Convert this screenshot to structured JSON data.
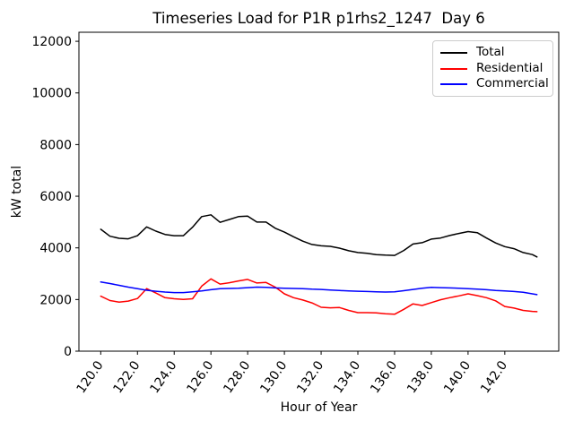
{
  "chart_data": {
    "type": "line",
    "title": "Timeseries Load for P1R p1rhs2_1247  Day 6",
    "xlabel": "Hour of Year",
    "ylabel": "kW total",
    "xlim": [
      118.8125,
      144.9375
    ],
    "ylim": [
      0,
      12350
    ],
    "grid": false,
    "legend_position": "upper right",
    "xticks": [
      120,
      122,
      124,
      126,
      128,
      130,
      132,
      134,
      136,
      138,
      140,
      142
    ],
    "xtick_labels": [
      "120.0",
      "122.0",
      "124.0",
      "126.0",
      "128.0",
      "130.0",
      "132.0",
      "134.0",
      "136.0",
      "138.0",
      "140.0",
      "142.0"
    ],
    "yticks": [
      0,
      2000,
      4000,
      6000,
      8000,
      10000,
      12000
    ],
    "ytick_labels": [
      "0",
      "2000",
      "4000",
      "6000",
      "8000",
      "10000",
      "12000"
    ],
    "x": [
      120.0,
      120.5,
      121.0,
      121.5,
      122.0,
      122.5,
      123.0,
      123.5,
      124.0,
      124.5,
      125.0,
      125.5,
      126.0,
      126.5,
      127.0,
      127.5,
      128.0,
      128.5,
      129.0,
      129.5,
      130.0,
      130.5,
      131.0,
      131.5,
      132.0,
      132.5,
      133.0,
      133.5,
      134.0,
      134.5,
      135.0,
      135.5,
      136.0,
      136.5,
      137.0,
      137.5,
      138.0,
      138.5,
      139.0,
      139.5,
      140.0,
      140.5,
      141.0,
      141.5,
      142.0,
      142.5,
      143.0,
      143.5,
      143.75
    ],
    "series": [
      {
        "name": "Total",
        "color": "#000000",
        "values": [
          4720,
          4450,
          4370,
          4350,
          4470,
          4810,
          4650,
          4520,
          4470,
          4470,
          4800,
          5210,
          5280,
          4990,
          5100,
          5210,
          5230,
          5000,
          5000,
          4760,
          4610,
          4430,
          4260,
          4130,
          4080,
          4060,
          3990,
          3890,
          3820,
          3790,
          3740,
          3720,
          3710,
          3900,
          4150,
          4200,
          4340,
          4380,
          4480,
          4560,
          4630,
          4590,
          4380,
          4190,
          4050,
          3970,
          3820,
          3740,
          3650
        ]
      },
      {
        "name": "Residential",
        "color": "#ff0000",
        "values": [
          2130,
          1960,
          1900,
          1940,
          2040,
          2420,
          2250,
          2070,
          2030,
          2000,
          2030,
          2520,
          2800,
          2600,
          2650,
          2720,
          2780,
          2640,
          2660,
          2480,
          2220,
          2070,
          1980,
          1870,
          1700,
          1680,
          1690,
          1580,
          1490,
          1490,
          1480,
          1450,
          1430,
          1620,
          1830,
          1770,
          1880,
          1990,
          2070,
          2140,
          2220,
          2150,
          2070,
          1950,
          1730,
          1670,
          1580,
          1540,
          1530
        ]
      },
      {
        "name": "Commercial",
        "color": "#0000ff",
        "values": [
          2680,
          2620,
          2550,
          2480,
          2420,
          2360,
          2320,
          2290,
          2270,
          2270,
          2300,
          2330,
          2380,
          2420,
          2430,
          2440,
          2460,
          2480,
          2470,
          2450,
          2440,
          2430,
          2420,
          2400,
          2390,
          2370,
          2350,
          2330,
          2320,
          2310,
          2300,
          2290,
          2300,
          2340,
          2390,
          2440,
          2470,
          2460,
          2450,
          2440,
          2420,
          2400,
          2380,
          2350,
          2330,
          2310,
          2280,
          2220,
          2190
        ]
      }
    ]
  }
}
